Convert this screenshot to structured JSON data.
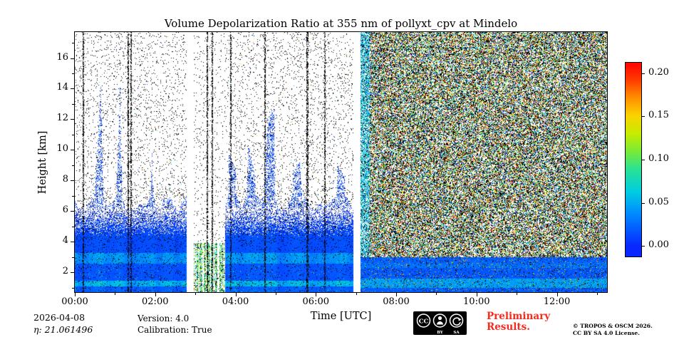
{
  "chart_data": {
    "type": "heatmap",
    "title": "Volume Depolarization Ratio at 355 nm of pollyxt_cpv at Mindelo",
    "xlabel": "Time [UTC]",
    "ylabel": "Height [km]",
    "x_range_hours": [
      0,
      13.25
    ],
    "y_range_km": [
      0.7,
      17.7
    ],
    "value_range": [
      0.0,
      0.2
    ],
    "x_ticks": {
      "values": [
        0,
        2,
        4,
        6,
        8,
        10,
        12
      ],
      "labels": [
        "00:00",
        "02:00",
        "04:00",
        "06:00",
        "08:00",
        "10:00",
        "12:00"
      ]
    },
    "x_minor_step_hours": 1,
    "y_ticks": {
      "values": [
        2,
        4,
        6,
        8,
        10,
        12,
        14,
        16
      ],
      "labels": [
        "2",
        "4",
        "6",
        "8",
        "10",
        "12",
        "14",
        "16"
      ]
    },
    "y_minor_step_km": 1,
    "colorbar": {
      "vmin": -0.012,
      "vmax": 0.212,
      "ticks": [
        {
          "value": 0.2,
          "label": "0.20"
        },
        {
          "value": 0.15,
          "label": "0.15"
        },
        {
          "value": 0.1,
          "label": "0.10"
        },
        {
          "value": 0.05,
          "label": "0.05"
        },
        {
          "value": 0.0,
          "label": "0.00"
        }
      ]
    },
    "colormap_stops": [
      [
        0.0,
        [
          8,
          40,
          255
        ]
      ],
      [
        0.18,
        [
          0,
          140,
          255
        ]
      ],
      [
        0.3,
        [
          0,
          205,
          225
        ]
      ],
      [
        0.42,
        [
          40,
          225,
          150
        ]
      ],
      [
        0.52,
        [
          120,
          235,
          55
        ]
      ],
      [
        0.62,
        [
          200,
          235,
          0
        ]
      ],
      [
        0.72,
        [
          252,
          210,
          0
        ]
      ],
      [
        0.82,
        [
          255,
          140,
          0
        ]
      ],
      [
        0.92,
        [
          255,
          55,
          0
        ]
      ],
      [
        1.0,
        [
          255,
          10,
          0
        ]
      ]
    ],
    "features": {
      "gaps_hours": [
        [
          2.78,
          2.97
        ],
        [
          6.93,
          7.12
        ]
      ],
      "calibration_hours": [
        2.97,
        3.75
      ],
      "day_noise_start_hour": 7.12,
      "plume_end_hour": 7.35,
      "dark_line_hours": [
        0.21,
        1.33,
        1.4,
        3.3,
        3.42,
        3.89,
        4.74,
        5.79,
        6.23
      ],
      "aerosol_layers": [
        {
          "height_km": [
            0.7,
            1.05
          ],
          "typical_value": 0.02
        },
        {
          "height_km": [
            1.05,
            1.45
          ],
          "typical_value": 0.05
        },
        {
          "height_km": [
            1.45,
            2.55
          ],
          "typical_value": 0.016
        },
        {
          "height_km": [
            2.55,
            3.25
          ],
          "typical_value": 0.038
        },
        {
          "height_km": [
            3.25,
            6.0
          ],
          "typical_value": 0.012
        }
      ],
      "notes": "Night-time profiles 00:00-07:07 with blue aerosol layers below ~6 km; depolarization calibration ~03:00-03:45; data gaps ~02:47-02:58 and ~06:56-07:07; dense daylight background noise over the full height range after ~07:10 UTC."
    }
  },
  "footer": {
    "date": "2026-04-08",
    "eta": "η: 21.061496",
    "version": "Version: 4.0",
    "calibration": "Calibration: True",
    "preliminary_line1": "Preliminary",
    "preliminary_line2": "Results.",
    "preliminary_color": "#f5291c",
    "copyright_line1": "© TROPOS & OSCM 2026.",
    "copyright_line2": "CC BY SA 4.0 License."
  },
  "license_badge": {
    "cc": "CC",
    "by": "BY",
    "sa": "SA"
  }
}
